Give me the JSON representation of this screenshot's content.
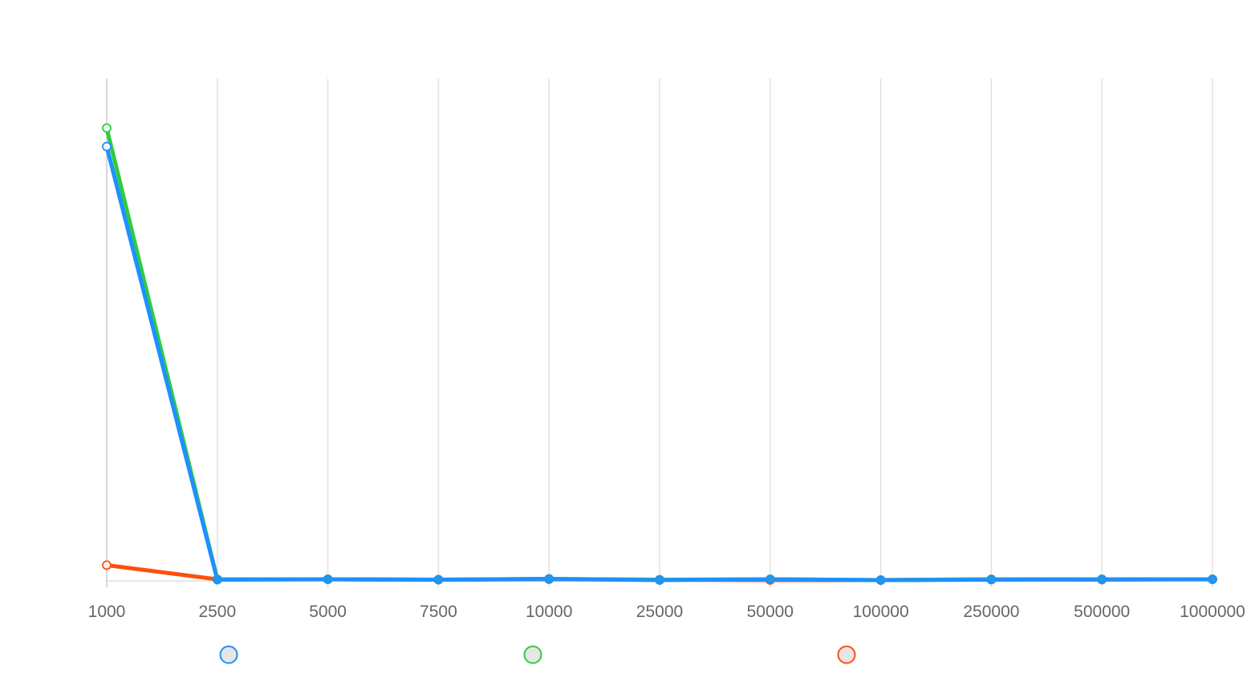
{
  "chart_data": {
    "type": "line",
    "title": "",
    "xlabel": "",
    "ylabel": "",
    "categories": [
      "1000",
      "2500",
      "5000",
      "7500",
      "10000",
      "25000",
      "50000",
      "100000",
      "250000",
      "500000",
      "1000000"
    ],
    "ylim": [
      0,
      1
    ],
    "grid": true,
    "legend_position": "bottom",
    "series": [
      {
        "color": "#ff4f0a",
        "values": [
          0.0313,
          0.0032,
          0.0032,
          0.0024,
          0.0032,
          0.0024,
          0.0016,
          0.0016,
          0.0032,
          0.0024,
          0.0032
        ]
      },
      {
        "color": "#2ecc40",
        "values": [
          0.9016,
          0.0032,
          0.0032,
          0.0024,
          0.004,
          0.0024,
          0.0032,
          0.0016,
          0.0032,
          0.0032,
          0.0032
        ]
      },
      {
        "color": "#1e90ff",
        "values": [
          0.8647,
          0.0024,
          0.0032,
          0.0024,
          0.004,
          0.0016,
          0.0032,
          0.0016,
          0.0024,
          0.0032,
          0.0032
        ]
      }
    ],
    "legend": [
      {
        "color": "#1e90ff",
        "label": ""
      },
      {
        "color": "#2ecc40",
        "label": ""
      },
      {
        "color": "#ff4f0a",
        "label": ""
      }
    ]
  }
}
